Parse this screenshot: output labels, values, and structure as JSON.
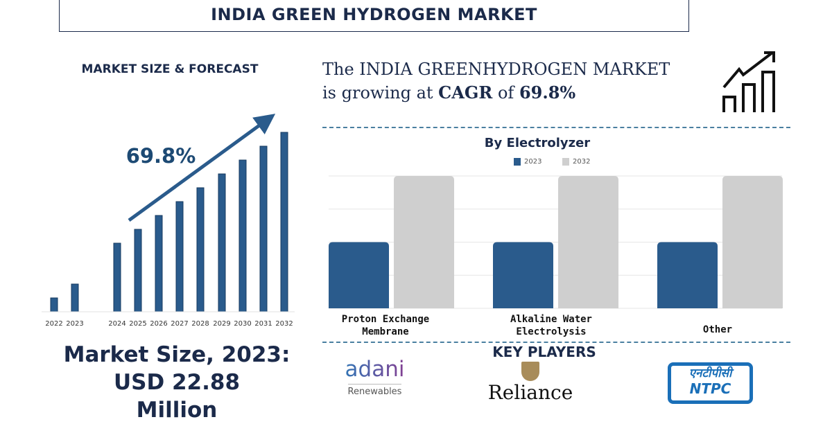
{
  "title": "INDIA GREEN HYDROGEN MARKET",
  "colors": {
    "navy": "#1b2a4a",
    "bar_blue": "#2a5b8c",
    "bar_grey": "#cfcfcf",
    "dash": "#4a7fa0"
  },
  "growth_statement": {
    "line1": "The INDIA GREENHYDROGEN MARKET",
    "line2_prefix": "is growing at",
    "cagr_label": "CAGR",
    "of": "of",
    "cagr_value": "69.8%",
    "icon": "growth-chart-icon"
  },
  "market_size": {
    "line1": "Market Size, 2023:",
    "line2": "USD 22.88",
    "line3": "Million"
  },
  "key_players": {
    "heading": "KEY PLAYERS",
    "adani": {
      "name": "adani",
      "sub": "Renewables"
    },
    "reliance": {
      "name": "Reliance"
    },
    "ntpc": {
      "hindi": "एनटीपीसी",
      "name": "NTPC"
    }
  },
  "chart_data": [
    {
      "type": "bar",
      "title": "MARKET SIZE & FORECAST",
      "annotation": "69.8%",
      "categories": [
        "2022",
        "2023",
        "2024",
        "2025",
        "2026",
        "2027",
        "2028",
        "2029",
        "2030",
        "2031",
        "2032"
      ],
      "values": [
        20,
        40,
        99,
        119,
        139,
        159,
        179,
        199,
        219,
        239,
        259
      ],
      "value_note": "relative heights; no y-axis printed",
      "grid": false
    },
    {
      "type": "bar",
      "title": "By Electrolyzer",
      "categories": [
        "Proton Exchange Membrane",
        "Alkaline Water Electrolysis",
        "Other"
      ],
      "category_lines": [
        [
          "Proton Exchange",
          "Membrane"
        ],
        [
          "Alkaline Water",
          "Electrolysis"
        ],
        [
          "Other"
        ]
      ],
      "series": [
        {
          "name": "2023",
          "values": [
            2,
            2,
            2
          ],
          "color": "#2a5b8c"
        },
        {
          "name": "2032",
          "values": [
            4,
            4,
            4
          ],
          "color": "#cfcfcf"
        }
      ],
      "ylim": [
        0,
        4
      ],
      "grid": true,
      "legend": "top"
    }
  ]
}
